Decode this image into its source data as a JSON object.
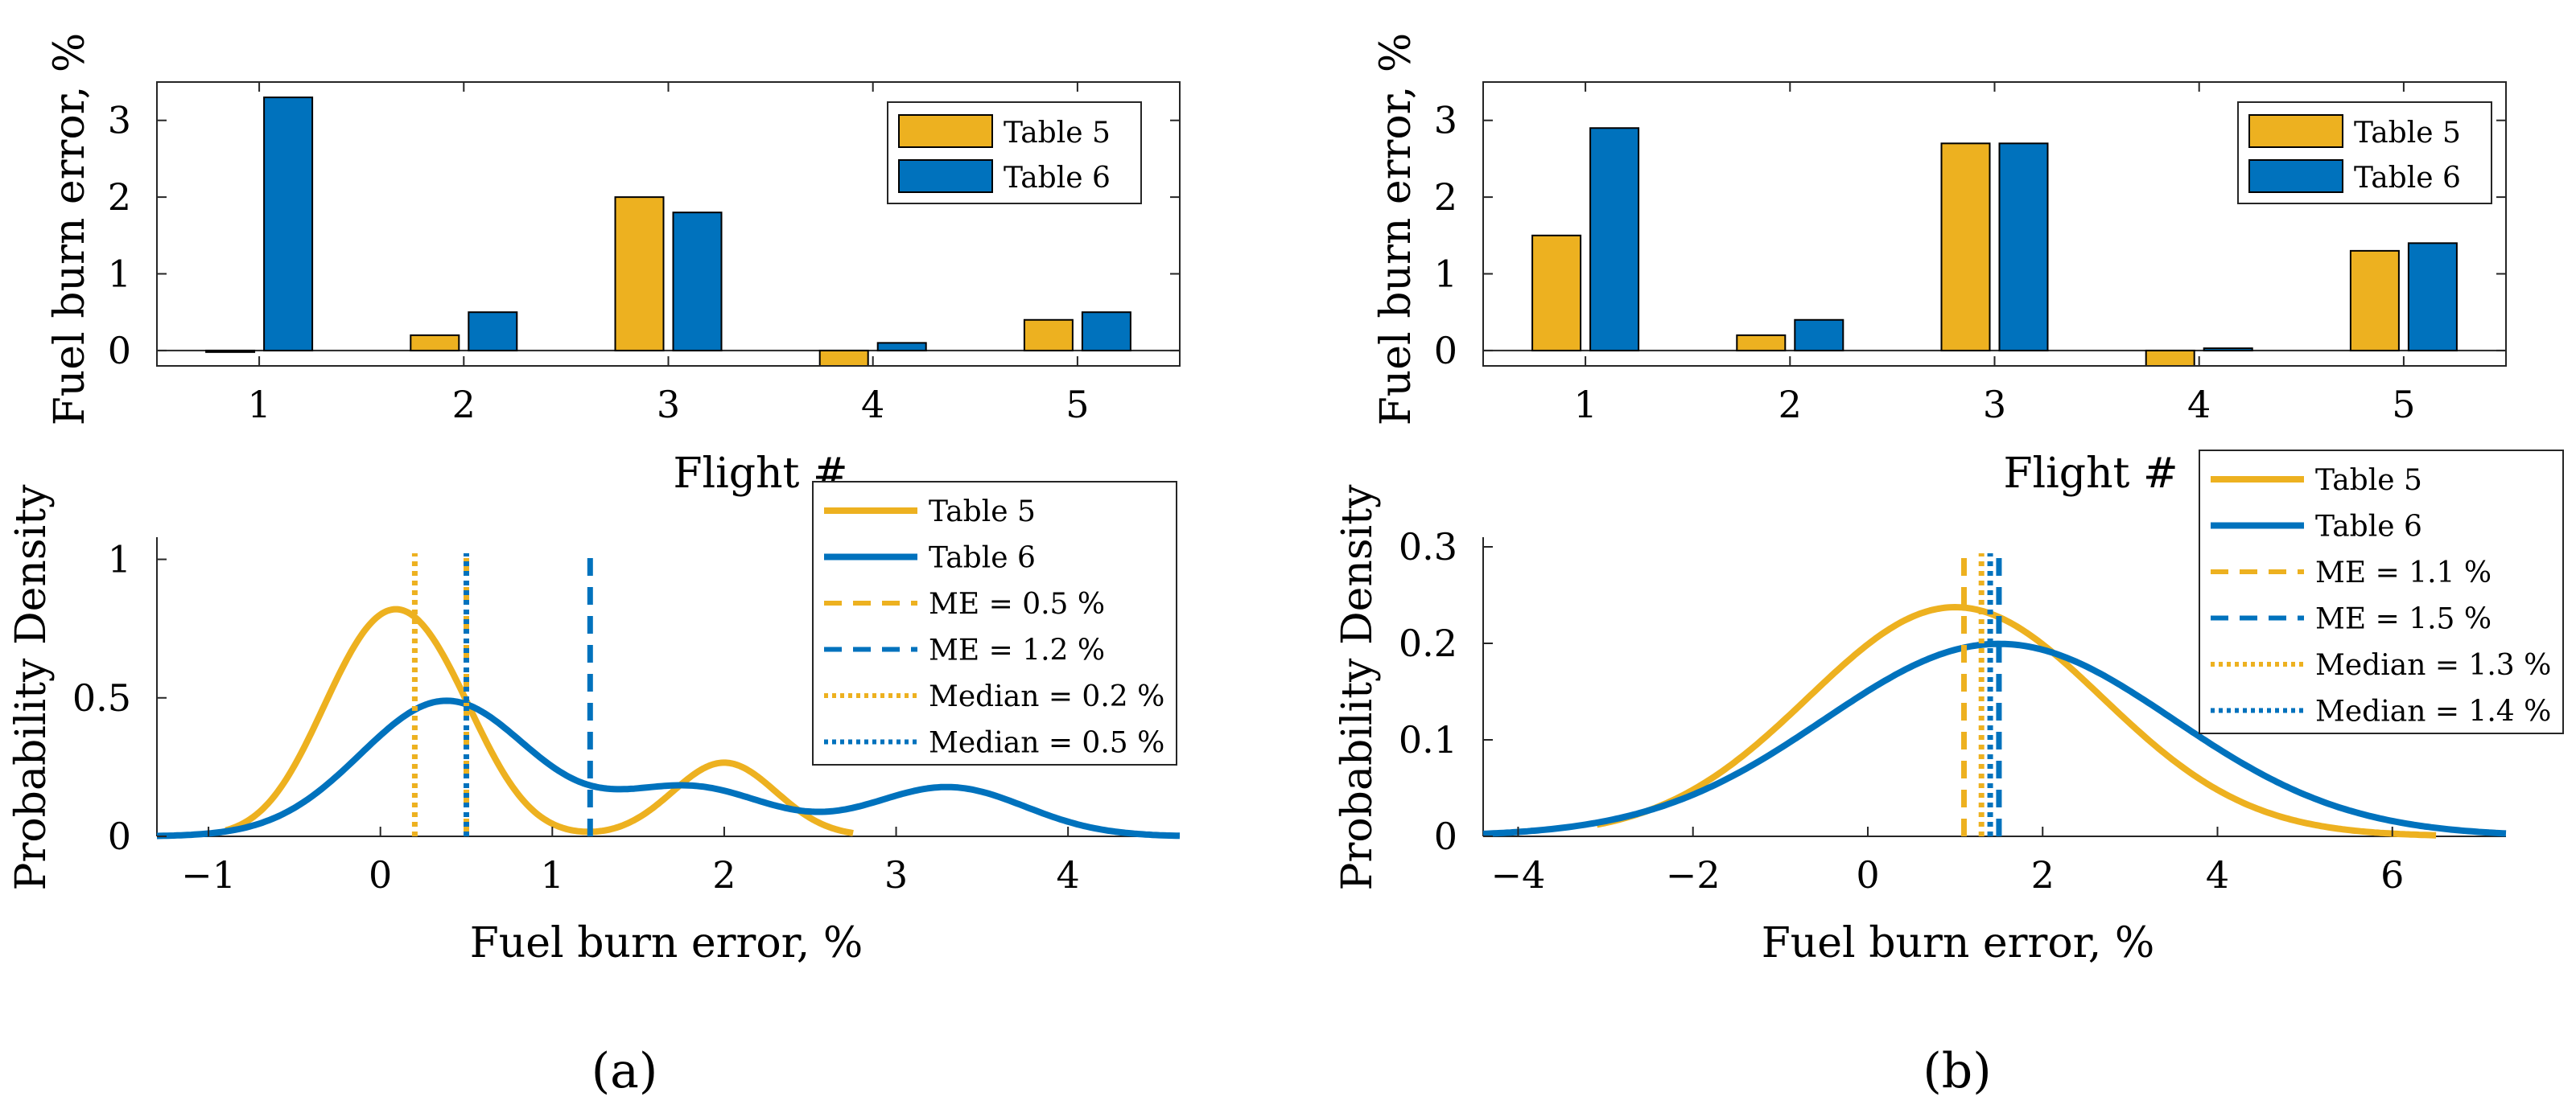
{
  "colors": {
    "table5": "#EDB120",
    "table6": "#0072BD"
  },
  "panels": [
    {
      "caption": "(a)",
      "bar_chart": {
        "type": "bar",
        "ylabel": "Fuel burn error, %",
        "xlabel": "Flight #",
        "categories": [
          "1",
          "2",
          "3",
          "4",
          "5"
        ],
        "ylim": [
          -0.2,
          3.5
        ],
        "yticks": [
          0,
          1,
          2,
          3
        ],
        "yticklabels": [
          "0",
          "1",
          "2",
          "3"
        ],
        "series": [
          {
            "name": "Table 5",
            "values": [
              -0.02,
              0.2,
              2.0,
              -0.2,
              0.4
            ]
          },
          {
            "name": "Table 6",
            "values": [
              3.3,
              0.5,
              1.8,
              0.1,
              0.5
            ]
          }
        ],
        "legend": [
          "Table 5",
          "Table 6"
        ]
      },
      "density_chart": {
        "type": "line",
        "ylabel": "Probability Density",
        "xlabel": "Fuel burn error, %",
        "xlim": [
          -1.3,
          4.65
        ],
        "ylim": [
          0,
          1.08
        ],
        "xticks": [
          -1,
          0,
          1,
          2,
          3,
          4
        ],
        "xticklabels": [
          "−1",
          "0",
          "1",
          "2",
          "3",
          "4"
        ],
        "yticks": [
          0,
          0.5,
          1
        ],
        "yticklabels": [
          "0",
          "0.5",
          "1"
        ],
        "kde": {
          "samples5": [
            -0.02,
            0.2,
            2.0,
            -0.2,
            0.4
          ],
          "bw5": 0.3,
          "range5": [
            -0.9,
            2.75
          ],
          "samples6": [
            3.3,
            0.5,
            1.8,
            0.1,
            0.5
          ],
          "bw6": 0.45,
          "range6": [
            -1.3,
            4.65
          ]
        },
        "vlines": [
          {
            "x": 0.5,
            "style": "dashed",
            "series": "Table 5"
          },
          {
            "x": 1.22,
            "style": "dashed",
            "series": "Table 6"
          },
          {
            "x": 0.2,
            "style": "dotted",
            "series": "Table 5"
          },
          {
            "x": 0.5,
            "style": "dotted",
            "series": "Table 6"
          }
        ],
        "legend": [
          "Table 5",
          "Table 6",
          "ME = 0.5 %",
          "ME = 1.2 %",
          "Median = 0.2 %",
          "Median = 0.5 %"
        ]
      }
    },
    {
      "caption": "(b)",
      "bar_chart": {
        "type": "bar",
        "ylabel": "Fuel burn error, %",
        "xlabel": "Flight #",
        "categories": [
          "1",
          "2",
          "3",
          "4",
          "5"
        ],
        "ylim": [
          -0.2,
          3.5
        ],
        "yticks": [
          0,
          1,
          2,
          3
        ],
        "yticklabels": [
          "0",
          "1",
          "2",
          "3"
        ],
        "series": [
          {
            "name": "Table 5",
            "values": [
              1.5,
              0.2,
              2.7,
              -0.2,
              1.3
            ]
          },
          {
            "name": "Table 6",
            "values": [
              2.9,
              0.4,
              2.7,
              0.03,
              1.4
            ]
          }
        ],
        "legend": [
          "Table 5",
          "Table 6"
        ]
      },
      "density_chart": {
        "type": "line",
        "ylabel": "Probability Density",
        "xlabel": "Fuel burn error, %",
        "xlim": [
          -4.4,
          7.3
        ],
        "ylim": [
          0,
          0.31
        ],
        "xticks": [
          -4,
          -2,
          0,
          2,
          4,
          6
        ],
        "xticklabels": [
          "−4",
          "−2",
          "0",
          "2",
          "4",
          "6"
        ],
        "yticks": [
          0,
          0.1,
          0.2,
          0.3
        ],
        "yticklabels": [
          "0",
          "0.1",
          "0.2",
          "0.3"
        ],
        "normal": {
          "mu5": 1.0,
          "sd5": 1.68,
          "range5": [
            -3.1,
            6.5
          ],
          "mu6": 1.5,
          "sd6": 2.0,
          "range6": [
            -4.4,
            7.3
          ]
        },
        "vlines": [
          {
            "x": 1.1,
            "style": "dashed",
            "series": "Table 5"
          },
          {
            "x": 1.5,
            "style": "dashed",
            "series": "Table 6"
          },
          {
            "x": 1.3,
            "style": "dotted",
            "series": "Table 5"
          },
          {
            "x": 1.4,
            "style": "dotted",
            "series": "Table 6"
          }
        ],
        "legend": [
          "Table 5",
          "Table 6",
          "ME = 1.1 %",
          "ME = 1.5 %",
          "Median = 1.3 %",
          "Median = 1.4 %"
        ]
      }
    }
  ]
}
